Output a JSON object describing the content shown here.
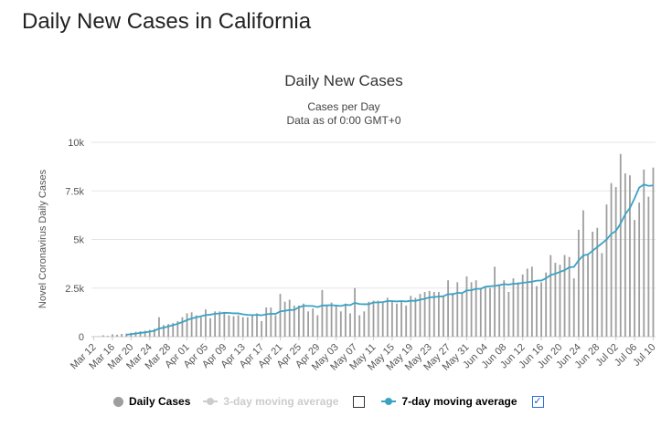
{
  "page": {
    "title": "Daily New Cases in California"
  },
  "colors": {
    "bars": "#9e9e9e",
    "line7": "#3aa3c4",
    "grid": "#e6e6e6",
    "inactive": "#cccccc",
    "check": "#1e5ad1"
  },
  "legend": {
    "daily_label": "Daily Cases",
    "three_day_label": "3-day moving average",
    "seven_day_label": "7-day moving average",
    "three_day_checked": false,
    "seven_day_checked": true,
    "check_mark": "✓"
  },
  "chart_data": {
    "type": "bar",
    "title": "Daily New Cases",
    "subtitle_lines": [
      "Cases per Day",
      "Data as of 0:00 GMT+0"
    ],
    "ylabel": "Novel Coronavirus Daily Cases",
    "ylim": [
      0,
      10000
    ],
    "yticks": [
      0,
      2500,
      5000,
      7500,
      10000
    ],
    "ytick_labels": [
      "0",
      "2.5k",
      "5k",
      "7.5k",
      "10k"
    ],
    "grid": true,
    "legend_position": "bottom",
    "categories": [
      "Mar 12",
      "Mar 13",
      "Mar 14",
      "Mar 15",
      "Mar 16",
      "Mar 17",
      "Mar 18",
      "Mar 19",
      "Mar 20",
      "Mar 21",
      "Mar 22",
      "Mar 23",
      "Mar 24",
      "Mar 25",
      "Mar 26",
      "Mar 27",
      "Mar 28",
      "Mar 29",
      "Mar 30",
      "Mar 31",
      "Apr 01",
      "Apr 02",
      "Apr 03",
      "Apr 04",
      "Apr 05",
      "Apr 06",
      "Apr 07",
      "Apr 08",
      "Apr 09",
      "Apr 10",
      "Apr 11",
      "Apr 12",
      "Apr 13",
      "Apr 14",
      "Apr 15",
      "Apr 16",
      "Apr 17",
      "Apr 18",
      "Apr 19",
      "Apr 20",
      "Apr 21",
      "Apr 22",
      "Apr 23",
      "Apr 24",
      "Apr 25",
      "Apr 26",
      "Apr 27",
      "Apr 28",
      "Apr 29",
      "Apr 30",
      "May 01",
      "May 02",
      "May 03",
      "May 04",
      "May 05",
      "May 06",
      "May 07",
      "May 08",
      "May 09",
      "May 10",
      "May 11",
      "May 12",
      "May 13",
      "May 14",
      "May 15",
      "May 16",
      "May 17",
      "May 18",
      "May 19",
      "May 20",
      "May 21",
      "May 22",
      "May 23",
      "May 24",
      "May 25",
      "May 26",
      "May 27",
      "May 28",
      "May 29",
      "May 30",
      "May 31",
      "Jun 01",
      "Jun 02",
      "Jun 03",
      "Jun 04",
      "Jun 05",
      "Jun 06",
      "Jun 07",
      "Jun 08",
      "Jun 09",
      "Jun 10",
      "Jun 11",
      "Jun 12",
      "Jun 13",
      "Jun 14",
      "Jun 15",
      "Jun 16",
      "Jun 17",
      "Jun 18",
      "Jun 19",
      "Jun 20",
      "Jun 21",
      "Jun 22",
      "Jun 23",
      "Jun 24",
      "Jun 25",
      "Jun 26",
      "Jun 27",
      "Jun 28",
      "Jun 29",
      "Jun 30",
      "Jul 01",
      "Jul 02",
      "Jul 03",
      "Jul 04",
      "Jul 05",
      "Jul 06",
      "Jul 07",
      "Jul 08",
      "Jul 09",
      "Jul 10"
    ],
    "xtick_labels": [
      "Mar 12",
      "Mar 16",
      "Mar 20",
      "Mar 24",
      "Mar 28",
      "Apr 01",
      "Apr 05",
      "Apr 09",
      "Apr 13",
      "Apr 17",
      "Apr 21",
      "Apr 25",
      "Apr 29",
      "May 03",
      "May 07",
      "May 11",
      "May 15",
      "May 19",
      "May 23",
      "May 27",
      "May 31",
      "Jun 04",
      "Jun 08",
      "Jun 12",
      "Jun 16",
      "Jun 20",
      "Jun 24",
      "Jun 28",
      "Jul 02",
      "Jul 06",
      "Jul 10"
    ],
    "series": [
      {
        "name": "Daily Cases",
        "type": "bar",
        "values": [
          10,
          20,
          70,
          40,
          120,
          100,
          140,
          160,
          200,
          250,
          280,
          300,
          350,
          400,
          1000,
          600,
          650,
          700,
          800,
          1000,
          1200,
          1250,
          1100,
          1000,
          1400,
          950,
          1300,
          1300,
          1250,
          1100,
          1050,
          1100,
          1000,
          1000,
          1100,
          1200,
          800,
          1500,
          1500,
          1100,
          2200,
          1800,
          1900,
          1600,
          1600,
          1700,
          1300,
          1450,
          1100,
          2400,
          1600,
          1750,
          1600,
          1300,
          1700,
          1200,
          2500,
          1100,
          1300,
          1800,
          1850,
          1850,
          1750,
          2000,
          1800,
          1700,
          1850,
          1600,
          2100,
          2000,
          2200,
          2300,
          2350,
          2300,
          2300,
          2100,
          2900,
          2250,
          2800,
          2200,
          3100,
          2800,
          2900,
          2500,
          2600,
          2500,
          3600,
          2700,
          2900,
          2300,
          3000,
          2800,
          3200,
          3500,
          3600,
          2600,
          2800,
          3300,
          4200,
          3800,
          3700,
          4200,
          4100,
          3000,
          5500,
          6500,
          4200,
          5400,
          5600,
          4300,
          6800,
          7900,
          7700,
          9400,
          8400,
          8300,
          6000,
          6900,
          8600,
          7200,
          8700
        ],
        "color": "#9e9e9e"
      },
      {
        "name": "7-day moving average",
        "type": "line",
        "values": [
          null,
          null,
          null,
          null,
          null,
          null,
          null,
          100,
          130,
          160,
          190,
          220,
          260,
          300,
          420,
          460,
          530,
          590,
          660,
          750,
          850,
          940,
          990,
          1050,
          1110,
          1130,
          1180,
          1190,
          1230,
          1220,
          1200,
          1200,
          1150,
          1120,
          1110,
          1120,
          1100,
          1150,
          1180,
          1170,
          1300,
          1330,
          1370,
          1380,
          1510,
          1590,
          1580,
          1580,
          1520,
          1600,
          1610,
          1620,
          1600,
          1580,
          1640,
          1620,
          1740,
          1680,
          1670,
          1670,
          1760,
          1760,
          1780,
          1830,
          1830,
          1810,
          1830,
          1810,
          1850,
          1840,
          1900,
          1950,
          2020,
          2040,
          2060,
          2080,
          2190,
          2180,
          2260,
          2240,
          2380,
          2390,
          2460,
          2460,
          2570,
          2590,
          2610,
          2650,
          2700,
          2680,
          2720,
          2730,
          2770,
          2800,
          2830,
          2880,
          2890,
          3000,
          3170,
          3240,
          3330,
          3420,
          3570,
          3590,
          3920,
          4180,
          4230,
          4420,
          4610,
          4800,
          5000,
          5280,
          5440,
          5820,
          6300,
          6620,
          7120,
          7670,
          7830,
          7760,
          7780
        ],
        "color": "#3aa3c4"
      }
    ]
  }
}
